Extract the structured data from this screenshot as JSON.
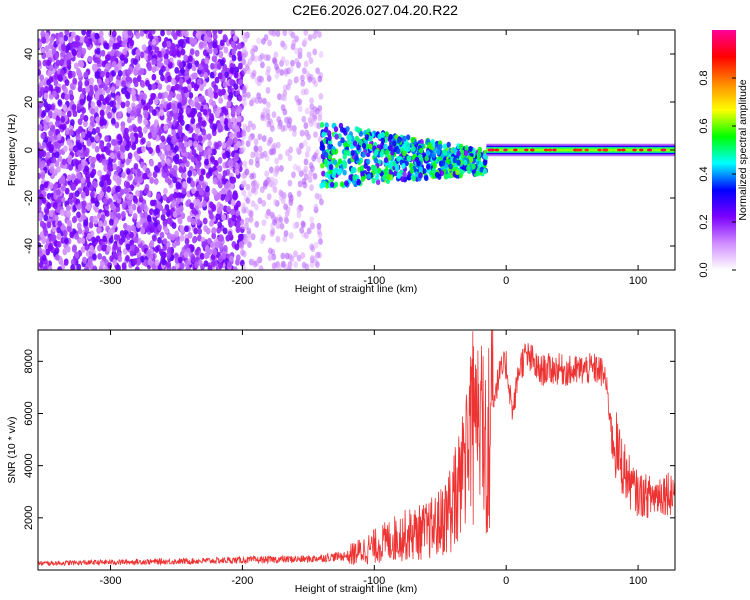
{
  "title": "C2E6.2026.027.04.20.R22",
  "chart_data": [
    {
      "type": "heatmap",
      "name": "spectrogram",
      "xlabel": "Height of straight line (km)",
      "ylabel": "Frequency (Hz)",
      "xlim": [
        -355,
        128
      ],
      "ylim": [
        -50,
        50
      ],
      "xticks": [
        -300,
        -200,
        -100,
        0,
        100
      ],
      "yticks": [
        -40,
        -20,
        0,
        20,
        40
      ],
      "colorbar": {
        "label": "Normalized spectral amplitude",
        "range": [
          0,
          1
        ],
        "ticks": [
          "0.0",
          "0.2",
          "0.4",
          "0.6",
          "0.8"
        ],
        "tick_values": [
          0.0,
          0.2,
          0.4,
          0.6,
          0.8
        ],
        "colors": [
          "#ffffff",
          "#d08cff",
          "#7b00ff",
          "#0000ff",
          "#00ffff",
          "#00ff00",
          "#ffff00",
          "#ff8800",
          "#ff0000",
          "#ff0099"
        ]
      },
      "regions": [
        {
          "x_range": [
            -355,
            -200
          ],
          "y_range": [
            -50,
            50
          ],
          "level": 0.18,
          "description": "scattered noise"
        },
        {
          "x_range": [
            -200,
            -140
          ],
          "y_range": [
            -50,
            50
          ],
          "level": 0.12,
          "description": "sparse noise"
        },
        {
          "x_range": [
            -140,
            -15
          ],
          "y_range": [
            -15,
            12
          ],
          "level": 0.35,
          "description": "signal spreading"
        },
        {
          "x_range": [
            -15,
            128
          ],
          "y_range": [
            -2,
            2
          ],
          "level": 0.8,
          "description": "narrow carrier line"
        }
      ]
    },
    {
      "type": "line",
      "name": "snr",
      "xlabel": "Height of straight line (km)",
      "ylabel": "SNR (10 * v/v)",
      "xlim": [
        -355,
        128
      ],
      "ylim": [
        0,
        9200
      ],
      "xticks": [
        -300,
        -200,
        -100,
        0,
        100
      ],
      "yticks": [
        2000,
        4000,
        6000,
        8000
      ],
      "color": "#ee3333",
      "series": [
        {
          "name": "SNR",
          "x": [
            -355,
            -300,
            -250,
            -200,
            -150,
            -120,
            -100,
            -80,
            -60,
            -50,
            -40,
            -30,
            -25,
            -20,
            -15,
            -10,
            -5,
            0,
            5,
            10,
            15,
            20,
            25,
            30,
            40,
            50,
            60,
            70,
            75,
            80,
            85,
            90,
            95,
            100,
            110,
            120,
            128
          ],
          "values": [
            250,
            300,
            330,
            380,
            420,
            550,
            900,
            1300,
            1500,
            1800,
            2600,
            3800,
            5500,
            5000,
            4200,
            6500,
            7500,
            7900,
            6000,
            7800,
            8200,
            8000,
            7600,
            7700,
            7700,
            7600,
            7700,
            7700,
            7400,
            5400,
            4400,
            3800,
            3200,
            2900,
            2800,
            3000,
            3000
          ]
        }
      ]
    }
  ]
}
